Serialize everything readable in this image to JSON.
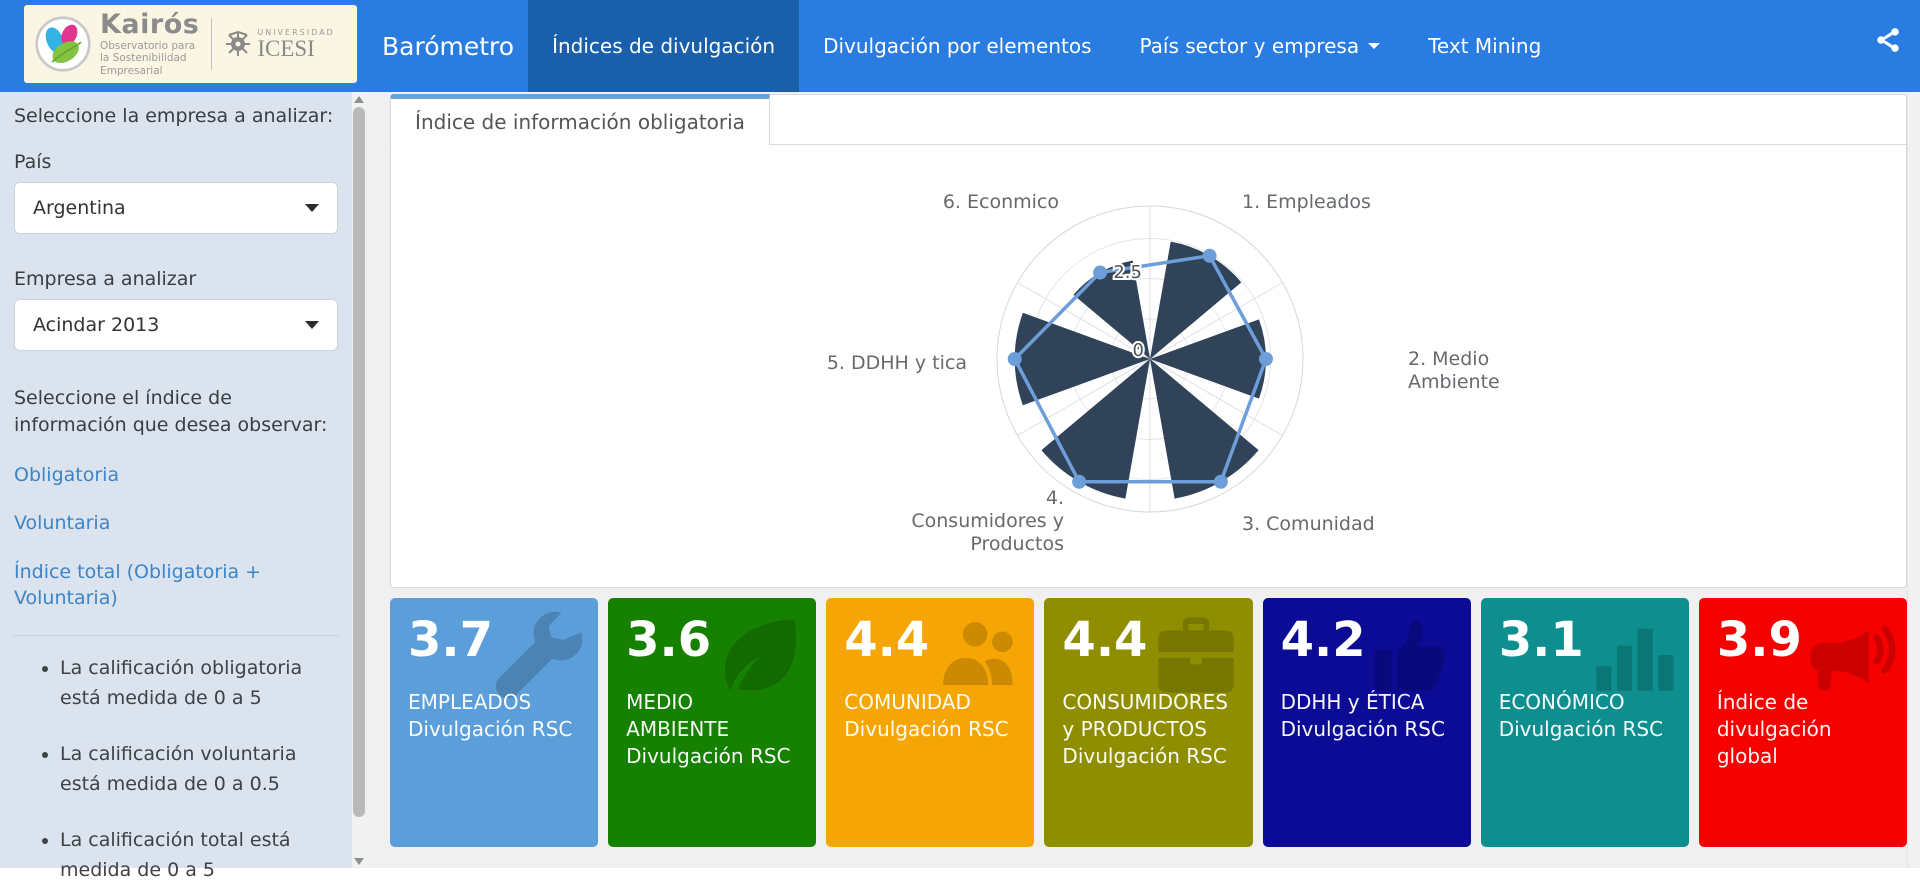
{
  "navbar": {
    "brand": "Barómetro",
    "items": [
      {
        "label": "Índices de divulgación",
        "active": true
      },
      {
        "label": "Divulgación por elementos",
        "active": false
      },
      {
        "label": "País sector y empresa",
        "active": false,
        "has_dropdown": true
      },
      {
        "label": "Text Mining",
        "active": false
      }
    ],
    "colors": {
      "bg": "#2a7ce0",
      "active_bg": "#1a5fa9"
    }
  },
  "logo": {
    "kairos_title": "Kairós",
    "kairos_subtitle": "Observatorio para\nla Sostenibilidad\nEmpresarial",
    "icesi_small": "UNIVERSIDAD",
    "icesi_name": "ICESI"
  },
  "sidebar": {
    "select_company_heading": "Seleccione la empresa a analizar:",
    "country_label": "País",
    "country_value": "Argentina",
    "company_label": "Empresa a analizar",
    "company_value": "Acindar 2013",
    "index_heading": "Seleccione el índice de información que desea observar:",
    "links": [
      "Obligatoria",
      "Voluntaria",
      "Índice total (Obligatoria + Voluntaria)"
    ],
    "notes": [
      "La calificación obligatoria está medida de 0 a 5",
      "La calificación voluntaria está medida de 0 a 0.5",
      "La calificación total está medida de 0 a 5"
    ]
  },
  "main": {
    "tab_label": "Índice de información obligatoria"
  },
  "chart_data": {
    "type": "polar",
    "title": "",
    "categories": [
      "1. Empleados",
      "2. Medio Ambiente",
      "3. Comunidad",
      "4. Consumidores y Productos",
      "5. DDHH y tica",
      "6. Econmico"
    ],
    "series": [
      {
        "name": "wedges",
        "type": "column",
        "values": [
          3.7,
          3.6,
          4.4,
          4.4,
          4.2,
          3.1
        ],
        "color": "#304358"
      },
      {
        "name": "line",
        "type": "line",
        "values": [
          3.7,
          3.6,
          4.4,
          4.4,
          4.2,
          3.1
        ],
        "color": "#6d9eda"
      }
    ],
    "radial_axis": {
      "ticks_shown": [
        "0",
        "2.5"
      ],
      "max": 4.75,
      "grid": true
    },
    "legend": "none"
  },
  "value_boxes": [
    {
      "value": "3.7",
      "label": "EMPLEADOS Divulgación RSC",
      "color": "#5b9ed9",
      "icon": "wrench"
    },
    {
      "value": "3.6",
      "label": "MEDIO AMBIENTE Divulgación RSC",
      "color": "#168000",
      "icon": "leaf"
    },
    {
      "value": "4.4",
      "label": "COMUNIDAD Divulgación RSC",
      "color": "#f6a604",
      "icon": "users"
    },
    {
      "value": "4.4",
      "label": "CONSUMIDORES y PRODUCTOS Divulgación RSC",
      "color": "#8f8e00",
      "icon": "briefcase"
    },
    {
      "value": "4.2",
      "label": "DDHH y ÉTICA Divulgación RSC",
      "color": "#0b0b96",
      "icon": "thumbs-up"
    },
    {
      "value": "3.1",
      "label": "ECONÓMICO Divulgación RSC",
      "color": "#0e8e8e",
      "icon": "bar-chart"
    },
    {
      "value": "3.9",
      "label": "Índice de divulgación global",
      "color": "#f50200",
      "icon": "bullhorn"
    }
  ]
}
